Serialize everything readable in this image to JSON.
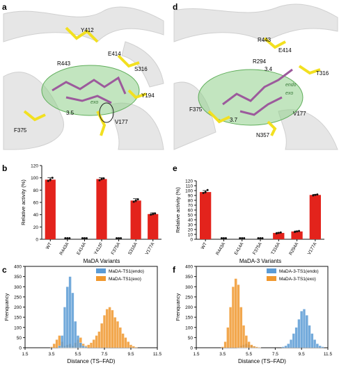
{
  "panels": {
    "a": {
      "letter": "a",
      "residues": [
        "Y412",
        "E414",
        "R443",
        "S316",
        "Y194",
        "V177",
        "F375"
      ],
      "distance": "3.5",
      "labels": [
        "exo"
      ]
    },
    "d": {
      "letter": "d",
      "residues": [
        "R443",
        "E414",
        "R294",
        "T316",
        "F375",
        "V177",
        "N357"
      ],
      "distances": [
        "3.4",
        "3.7"
      ],
      "labels": [
        "endo",
        "exo"
      ]
    }
  },
  "colors": {
    "bar": "#e3231c",
    "endo": "#5b9bd5",
    "exo": "#f0982e",
    "pocket": "#8fcf8a",
    "residue": "#f2e020",
    "ribbon": "#d9d9d9"
  },
  "chart_data": [
    {
      "panel": "b",
      "type": "bar",
      "title": "",
      "ylabel": "Relative activity (%)",
      "xlabel": "MaDA Variants",
      "ylim": [
        0,
        120
      ],
      "yticks": [
        0,
        20,
        40,
        60,
        80,
        100,
        120
      ],
      "categories": [
        "WT",
        "R443A",
        "E414A",
        "Y412F",
        "F375A",
        "S316A",
        "V177A"
      ],
      "values": [
        97,
        0,
        0,
        98,
        0,
        63,
        41
      ],
      "errors": [
        3,
        0,
        0,
        2,
        0,
        3,
        2
      ],
      "points": [
        [
          95,
          97,
          100
        ],
        [
          0,
          0,
          0
        ],
        [
          0,
          0,
          0
        ],
        [
          96,
          98,
          99
        ],
        [
          0,
          0,
          0
        ],
        [
          61,
          63,
          65
        ],
        [
          40,
          41,
          42
        ]
      ]
    },
    {
      "panel": "e",
      "type": "bar",
      "title": "",
      "ylabel": "Relative activity (%)",
      "xlabel": "MaDA-3 Variants",
      "ylim": [
        0,
        120
      ],
      "yticks": [
        0,
        10,
        20,
        30,
        40,
        50,
        60,
        70,
        80,
        90,
        100,
        110,
        120
      ],
      "categories": [
        "WT",
        "R443A",
        "E414A",
        "F375A",
        "T316A",
        "R294A",
        "V177A"
      ],
      "values": [
        97,
        0,
        0,
        0,
        13,
        16,
        91
      ],
      "errors": [
        3,
        0,
        0,
        0,
        1,
        1,
        1
      ],
      "points": [
        [
          95,
          97,
          101
        ],
        [
          0,
          0,
          0
        ],
        [
          0,
          0,
          0
        ],
        [
          0,
          0,
          0
        ],
        [
          12,
          13,
          14
        ],
        [
          15,
          16,
          17
        ],
        [
          90,
          91,
          92
        ]
      ]
    },
    {
      "panel": "c",
      "type": "bar",
      "title": "",
      "ylabel": "Frenquancy",
      "xlabel": "Distance (TS–FAD)",
      "xlim": [
        1.5,
        11.5
      ],
      "ylim": [
        0,
        400
      ],
      "xticks": [
        1.5,
        3.5,
        5.5,
        7.5,
        9.5,
        11.5
      ],
      "yticks": [
        0,
        50,
        100,
        150,
        200,
        250,
        300,
        350,
        400
      ],
      "legend_position": "top-right",
      "bin_width": 0.2,
      "series": [
        {
          "name": "MaDA-TS1(endo)",
          "x": [
            4.0,
            4.2,
            4.4,
            4.6,
            4.8,
            5.0,
            5.2,
            5.4,
            5.6,
            5.8,
            6.0
          ],
          "values": [
            10,
            60,
            200,
            300,
            350,
            270,
            130,
            60,
            25,
            10,
            5
          ]
        },
        {
          "name": "MaDA-TS1(exo)",
          "x": [
            3.4,
            3.6,
            3.8,
            4.0,
            4.2,
            4.4,
            4.6,
            4.8,
            5.0,
            5.2,
            5.4,
            5.6,
            5.8,
            6.0,
            6.2,
            6.4,
            6.6,
            6.8,
            7.0,
            7.2,
            7.4,
            7.6,
            7.8,
            8.0,
            8.2,
            8.4,
            8.6,
            8.8,
            9.0,
            9.2,
            9.4,
            9.6,
            9.8
          ],
          "values": [
            5,
            20,
            40,
            60,
            30,
            10,
            15,
            20,
            10,
            25,
            40,
            50,
            20,
            10,
            15,
            25,
            40,
            60,
            80,
            120,
            160,
            190,
            200,
            185,
            150,
            130,
            100,
            70,
            50,
            30,
            15,
            8,
            3
          ]
        }
      ]
    },
    {
      "panel": "f",
      "type": "bar",
      "title": "",
      "ylabel": "Frenquancy",
      "xlabel": "Distance (TS–FAD)",
      "xlim": [
        1.5,
        11.5
      ],
      "ylim": [
        0,
        400
      ],
      "xticks": [
        1.5,
        3.5,
        5.5,
        7.5,
        9.5,
        11.5
      ],
      "yticks": [
        0,
        50,
        100,
        150,
        200,
        250,
        300,
        350,
        400
      ],
      "legend_position": "top-right",
      "bin_width": 0.2,
      "series": [
        {
          "name": "MaDA-3-TS1(endo)",
          "x": [
            4.6,
            4.8,
            5.0,
            5.2,
            5.4,
            5.6,
            5.8,
            6.0,
            6.2,
            8.0,
            8.2,
            8.4,
            8.6,
            8.8,
            9.0,
            9.2,
            9.4,
            9.6,
            9.8,
            10.0,
            10.2,
            10.4,
            10.6,
            10.8,
            11.0
          ],
          "values": [
            5,
            10,
            15,
            20,
            15,
            10,
            8,
            5,
            3,
            5,
            10,
            20,
            40,
            70,
            100,
            140,
            180,
            190,
            160,
            110,
            70,
            40,
            20,
            10,
            5
          ]
        },
        {
          "name": "MaDA-3-TS1(exo)",
          "x": [
            3.4,
            3.6,
            3.8,
            4.0,
            4.2,
            4.4,
            4.6,
            4.8,
            5.0,
            5.2,
            5.4,
            5.6,
            5.8,
            6.0,
            6.2
          ],
          "values": [
            5,
            30,
            100,
            200,
            300,
            340,
            310,
            200,
            110,
            60,
            30,
            15,
            8,
            4,
            2
          ]
        }
      ]
    }
  ]
}
